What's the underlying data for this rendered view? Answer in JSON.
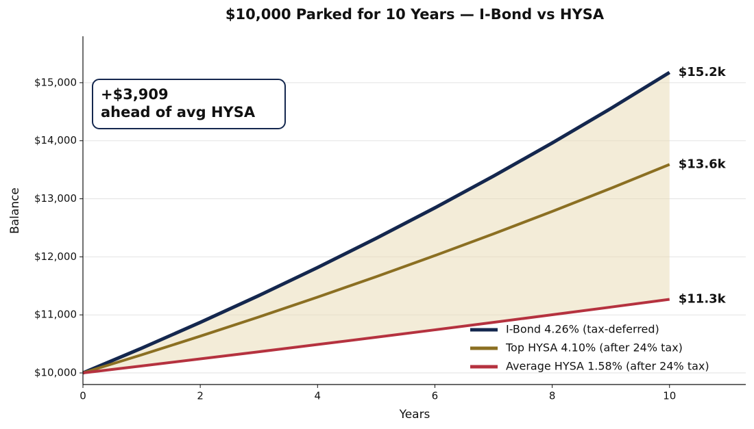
{
  "chart_data": {
    "type": "line",
    "title": "$10,000 Parked for 10 Years — I-Bond vs HYSA",
    "xlabel": "Years",
    "ylabel": "Balance",
    "x": [
      0,
      1,
      2,
      3,
      4,
      5,
      6,
      7,
      8,
      9,
      10
    ],
    "series": [
      {
        "name": "I-Bond 4.26% (tax-deferred)",
        "color": "#14274e",
        "end_label": "$15.2k",
        "values": [
          10000,
          10426,
          10870.15,
          11333.23,
          11816.03,
          12319.39,
          12844.2,
          13391.36,
          13961.83,
          14556.6,
          15176.71
        ]
      },
      {
        "name": "Top HYSA 4.10% (after 24% tax)",
        "color": "#8b6f22",
        "end_label": "$13.6k",
        "values": [
          10000,
          10311.6,
          10632.91,
          10964.23,
          11305.87,
          11658.16,
          12021.44,
          12396.03,
          12782.29,
          13180.59,
          13591.3
        ]
      },
      {
        "name": "Average HYSA 1.58% (after 24% tax)",
        "color": "#b5323f",
        "end_label": "$11.3k",
        "values": [
          10000,
          10120.08,
          10241.6,
          10364.58,
          10489.04,
          10614.99,
          10742.46,
          10871.46,
          11002.01,
          11134.12,
          11267.83
        ]
      }
    ],
    "fill_color": "#e9dcb8",
    "annotation": [
      "+$3,909",
      "ahead of avg HYSA"
    ],
    "xlim": [
      0,
      11.3
    ],
    "ylim": [
      9800,
      15800
    ],
    "xticks": [
      0,
      2,
      4,
      6,
      8,
      10
    ],
    "yticks": [
      {
        "value": 10000,
        "label": "$10,000"
      },
      {
        "value": 11000,
        "label": "$11,000"
      },
      {
        "value": 12000,
        "label": "$12,000"
      },
      {
        "value": 13000,
        "label": "$13,000"
      },
      {
        "value": 14000,
        "label": "$14,000"
      },
      {
        "value": 15000,
        "label": "$15,000"
      }
    ],
    "grid": true,
    "legend": "lower right"
  }
}
